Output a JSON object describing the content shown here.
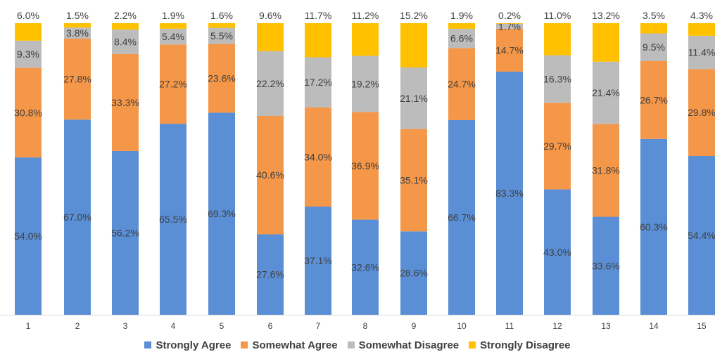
{
  "chart_data": {
    "type": "bar",
    "stacked": true,
    "percent": true,
    "categories": [
      "1",
      "2",
      "3",
      "4",
      "5",
      "6",
      "7",
      "8",
      "9",
      "10",
      "11",
      "12",
      "13",
      "14",
      "15"
    ],
    "series": [
      {
        "name": "Strongly Agree",
        "color": "#5a8fd6",
        "values": [
          54.0,
          67.0,
          56.2,
          65.5,
          69.3,
          27.6,
          37.1,
          32.6,
          28.6,
          66.7,
          83.3,
          43.0,
          33.6,
          60.3,
          54.4
        ]
      },
      {
        "name": "Somewhat Agree",
        "color": "#f59748",
        "values": [
          30.8,
          27.8,
          33.3,
          27.2,
          23.6,
          40.6,
          34.0,
          36.9,
          35.1,
          24.7,
          14.7,
          29.7,
          31.8,
          26.7,
          29.8
        ]
      },
      {
        "name": "Somewhat Disagree",
        "color": "#bcbcbc",
        "values": [
          9.3,
          3.8,
          8.4,
          5.4,
          5.5,
          22.2,
          17.2,
          19.2,
          21.1,
          6.6,
          1.7,
          16.3,
          21.4,
          9.5,
          11.4
        ]
      },
      {
        "name": "Strongly Disagree",
        "color": "#ffc000",
        "values": [
          6.0,
          1.5,
          2.2,
          1.9,
          1.6,
          9.6,
          11.7,
          11.2,
          15.2,
          1.9,
          0.2,
          11.0,
          13.2,
          3.5,
          4.3
        ]
      }
    ],
    "labels": [
      [
        "54.0%",
        "67.0%",
        "56.2%",
        "65.5%",
        "69.3%",
        "27.6%",
        "37.1%",
        "32.6%",
        "28.6%",
        "66.7%",
        "83.3%",
        "43.0%",
        "33.6%",
        "60.3%",
        "54.4%"
      ],
      [
        "30.8%",
        "27.8%",
        "33.3%",
        "27.2%",
        "23.6%",
        "40.6%",
        "34.0%",
        "36.9%",
        "35.1%",
        "24.7%",
        "14.7%",
        "29.7%",
        "31.8%",
        "26.7%",
        "29.8%"
      ],
      [
        "9.3%",
        "3.8%",
        "8.4%",
        "5.4%",
        "5.5%",
        "22.2%",
        "17.2%",
        "19.2%",
        "21.1%",
        "6.6%",
        "1.7%",
        "16.3%",
        "21.4%",
        "9.5%",
        "11.4%"
      ],
      [
        "6.0%",
        "1.5%",
        "2.2%",
        "1.9%",
        "1.6%",
        "9.6%",
        "11.7%",
        "11.2%",
        "15.2%",
        "1.9%",
        "0.2%",
        "11.0%",
        "13.2%",
        "3.5%",
        "4.3%"
      ]
    ],
    "ylim": [
      0,
      100
    ],
    "grid": false,
    "legend": "bottom"
  }
}
